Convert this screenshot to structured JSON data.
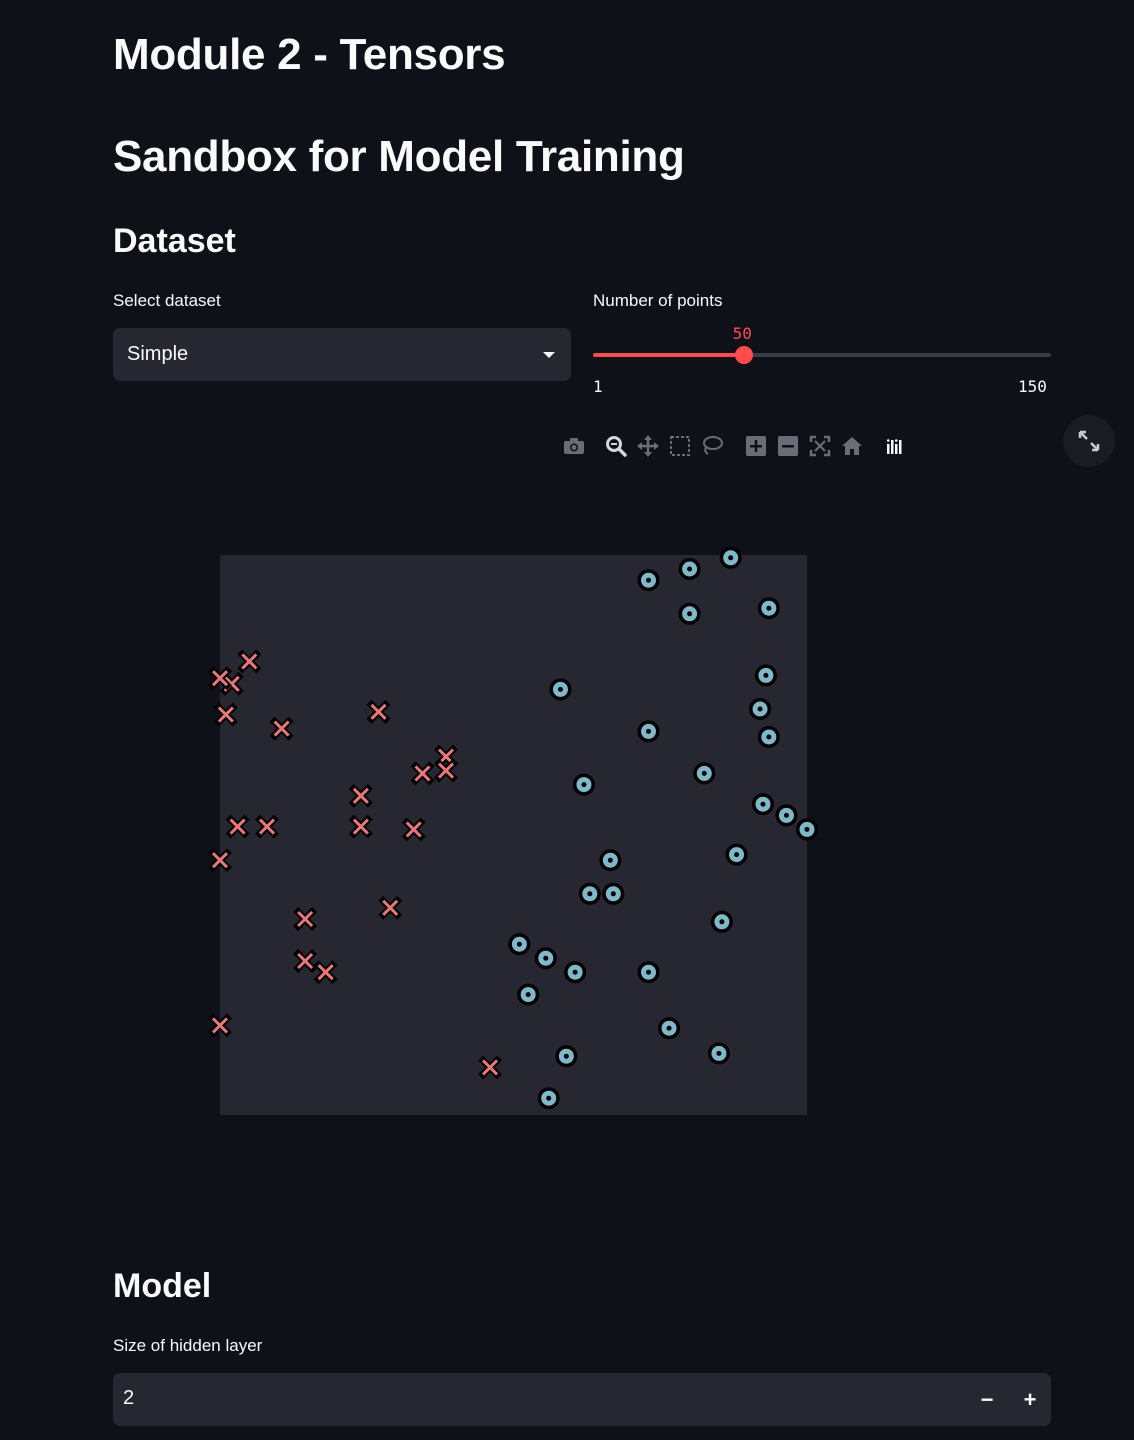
{
  "page": {
    "title": "Module 2 - Tensors",
    "subtitle": "Sandbox for Model Training"
  },
  "dataset": {
    "heading": "Dataset",
    "select_label": "Select dataset",
    "select_value": "Simple",
    "slider_label": "Number of points",
    "slider_value": "50",
    "slider_min": "1",
    "slider_max": "150",
    "slider_fraction": 0.3289
  },
  "toolbar": {
    "icons": [
      "camera-icon",
      "zoom-icon",
      "pan-icon",
      "box-select-icon",
      "lasso-select-icon",
      "zoom-in-icon",
      "zoom-out-icon",
      "autoscale-icon",
      "reset-axes-icon",
      "plotly-logo-icon",
      "fullscreen-icon"
    ]
  },
  "chart_data": {
    "type": "scatter",
    "xlim": [
      0,
      1
    ],
    "ylim": [
      0,
      1
    ],
    "grid": false,
    "series": [
      {
        "marker": "x",
        "color": "#e8777a",
        "x": [
          0.05,
          0.02,
          0.01,
          0.105,
          0.27,
          0.0,
          0.24,
          0.385,
          0.385,
          0.345,
          0.24,
          0.03,
          0.08,
          0.33,
          0.0,
          0.29,
          0.145,
          0.145,
          0.18,
          0.0,
          0.46
        ],
        "y": [
          0.81,
          0.77,
          0.715,
          0.69,
          0.72,
          0.78,
          0.57,
          0.64,
          0.615,
          0.61,
          0.515,
          0.515,
          0.515,
          0.51,
          0.455,
          0.37,
          0.35,
          0.275,
          0.255,
          0.16,
          0.085
        ]
      },
      {
        "marker": "o",
        "color": "#7fb8c8",
        "x": [
          0.73,
          0.8,
          0.87,
          0.8,
          0.935,
          0.58,
          0.73,
          0.93,
          0.92,
          0.935,
          0.62,
          0.825,
          0.925,
          0.965,
          1.0,
          0.88,
          0.665,
          0.63,
          0.67,
          0.855,
          0.51,
          0.555,
          0.605,
          0.73,
          0.525,
          0.765,
          0.59,
          0.85,
          0.56
        ],
        "y": [
          0.955,
          0.975,
          0.995,
          0.895,
          0.905,
          0.76,
          0.685,
          0.785,
          0.725,
          0.675,
          0.59,
          0.61,
          0.555,
          0.535,
          0.51,
          0.465,
          0.455,
          0.395,
          0.395,
          0.345,
          0.305,
          0.28,
          0.255,
          0.255,
          0.215,
          0.155,
          0.105,
          0.11,
          0.03
        ]
      }
    ]
  },
  "model": {
    "heading": "Model",
    "hidden_label": "Size of hidden layer",
    "hidden_value": "2",
    "minus": "−",
    "plus": "+"
  },
  "colors": {
    "background": "#0e1117",
    "widget": "#262730",
    "accent": "#ff4b4b",
    "plot_bg": "#262730"
  }
}
